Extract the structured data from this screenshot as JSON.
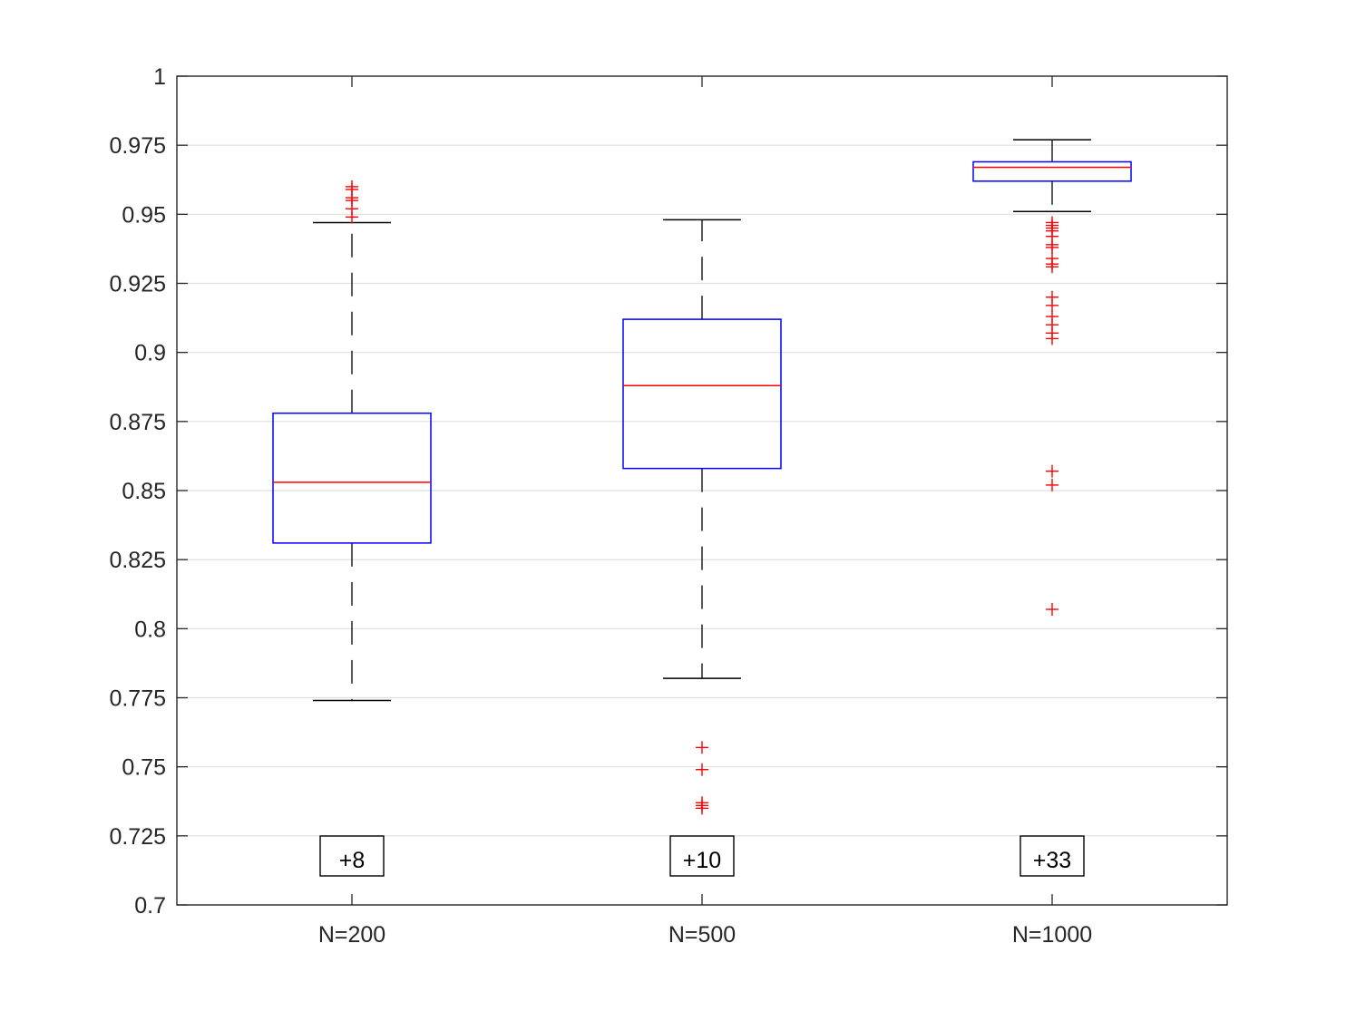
{
  "chart_data": {
    "type": "box",
    "title": "",
    "xlabel": "",
    "ylabel": "",
    "ylim": [
      0.7,
      1.0
    ],
    "yticks": [
      0.7,
      0.725,
      0.75,
      0.775,
      0.8,
      0.825,
      0.85,
      0.875,
      0.9,
      0.925,
      0.95,
      0.975,
      1
    ],
    "ytick_labels": [
      "0.7",
      "0.725",
      "0.75",
      "0.775",
      "0.8",
      "0.825",
      "0.85",
      "0.875",
      "0.9",
      "0.925",
      "0.95",
      "0.975",
      "1"
    ],
    "grid": "horizontal",
    "categories": [
      "N=200",
      "N=500",
      "N=1000"
    ],
    "boxes": [
      {
        "category": "N=200",
        "whisker_low": 0.774,
        "q1": 0.831,
        "median": 0.853,
        "q3": 0.878,
        "whisker_high": 0.947,
        "outliers": [
          0.949,
          0.952,
          0.955,
          0.956,
          0.959,
          0.96
        ],
        "annotation": "+8"
      },
      {
        "category": "N=500",
        "whisker_low": 0.782,
        "q1": 0.858,
        "median": 0.888,
        "q3": 0.912,
        "whisker_high": 0.948,
        "outliers": [
          0.757,
          0.749,
          0.737,
          0.736,
          0.735
        ],
        "annotation": "+10"
      },
      {
        "category": "N=1000",
        "whisker_low": 0.951,
        "q1": 0.962,
        "median": 0.967,
        "q3": 0.969,
        "whisker_high": 0.977,
        "outliers": [
          0.947,
          0.946,
          0.945,
          0.944,
          0.942,
          0.939,
          0.938,
          0.934,
          0.932,
          0.931,
          0.92,
          0.917,
          0.913,
          0.91,
          0.907,
          0.905,
          0.857,
          0.852,
          0.807
        ],
        "annotation": "+33"
      }
    ],
    "colors": {
      "box": "#0000ff",
      "median": "#ff0000",
      "outlier": "#ff0000",
      "whisker": "#000000",
      "axis": "#262626",
      "grid": "#dfdfdf"
    }
  }
}
